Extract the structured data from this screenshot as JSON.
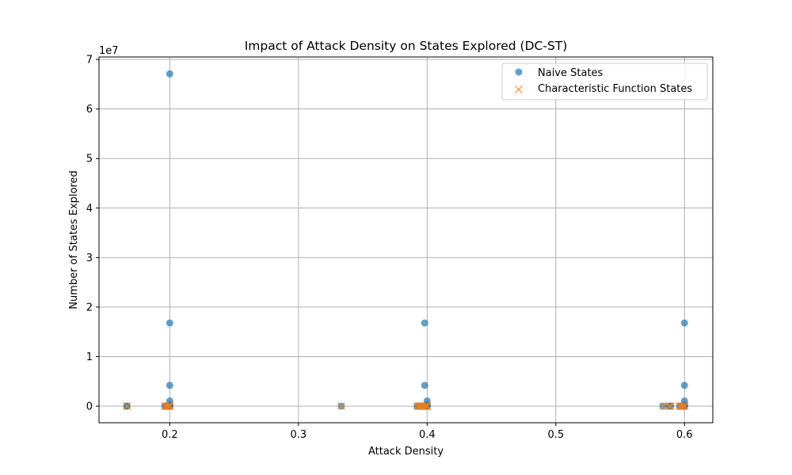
{
  "chart_data": {
    "type": "scatter",
    "title": "Impact of Attack Density on States Explored (DC-ST)",
    "xlabel": "Attack Density",
    "ylabel": "Number of States Explored",
    "y_multiplier_label": "1e7",
    "xlim": [
      0.145,
      0.622
    ],
    "ylim": [
      -3350000,
      70500000
    ],
    "x_ticks": [
      0.2,
      0.3,
      0.4,
      0.5,
      0.6
    ],
    "x_tick_labels": [
      "0.2",
      "0.3",
      "0.4",
      "0.5",
      "0.6"
    ],
    "y_ticks": [
      0,
      10000000,
      20000000,
      30000000,
      40000000,
      50000000,
      60000000,
      70000000
    ],
    "y_tick_labels": [
      "0",
      "1",
      "2",
      "3",
      "4",
      "5",
      "6",
      "7"
    ],
    "grid": true,
    "legend_position": "top-right",
    "series": [
      {
        "name": "Naive States",
        "marker": "circle",
        "color": "#1f77b4",
        "points": [
          [
            0.1667,
            0
          ],
          [
            0.1667,
            8000
          ],
          [
            0.1961,
            0
          ],
          [
            0.1973,
            10000
          ],
          [
            0.1988,
            0
          ],
          [
            0.1995,
            20000
          ],
          [
            0.2,
            67100000
          ],
          [
            0.2,
            16800000
          ],
          [
            0.2,
            4200000
          ],
          [
            0.2,
            1050000
          ],
          [
            0.2,
            260000
          ],
          [
            0.2,
            65000
          ],
          [
            0.2,
            0
          ],
          [
            0.3333,
            0
          ],
          [
            0.3922,
            0
          ],
          [
            0.3937,
            0
          ],
          [
            0.3951,
            15000
          ],
          [
            0.3963,
            0
          ],
          [
            0.3981,
            16800000
          ],
          [
            0.3981,
            4200000
          ],
          [
            0.3991,
            0
          ],
          [
            0.4,
            1050000
          ],
          [
            0.4,
            260000
          ],
          [
            0.4,
            65000
          ],
          [
            0.4,
            0
          ],
          [
            0.5833,
            0
          ],
          [
            0.5882,
            0
          ],
          [
            0.5893,
            10000
          ],
          [
            0.5961,
            0
          ],
          [
            0.5973,
            0
          ],
          [
            0.5986,
            0
          ],
          [
            0.6,
            16800000
          ],
          [
            0.6,
            4200000
          ],
          [
            0.6,
            1050000
          ],
          [
            0.6,
            260000
          ],
          [
            0.6,
            65000
          ],
          [
            0.6,
            0
          ]
        ]
      },
      {
        "name": "Characteristic Function States",
        "marker": "x",
        "color": "#ff7f0e",
        "points": [
          [
            0.1667,
            0
          ],
          [
            0.1667,
            5000
          ],
          [
            0.1961,
            0
          ],
          [
            0.1973,
            0
          ],
          [
            0.1988,
            0
          ],
          [
            0.1995,
            0
          ],
          [
            0.2,
            30000
          ],
          [
            0.2,
            0
          ],
          [
            0.3333,
            0
          ],
          [
            0.3922,
            0
          ],
          [
            0.3937,
            0
          ],
          [
            0.3951,
            0
          ],
          [
            0.3963,
            0
          ],
          [
            0.3981,
            0
          ],
          [
            0.3991,
            0
          ],
          [
            0.4,
            25000
          ],
          [
            0.4,
            0
          ],
          [
            0.5833,
            0
          ],
          [
            0.5882,
            0
          ],
          [
            0.5893,
            0
          ],
          [
            0.5961,
            0
          ],
          [
            0.5973,
            0
          ],
          [
            0.5986,
            0
          ],
          [
            0.6,
            20000
          ],
          [
            0.6,
            0
          ]
        ]
      }
    ]
  }
}
